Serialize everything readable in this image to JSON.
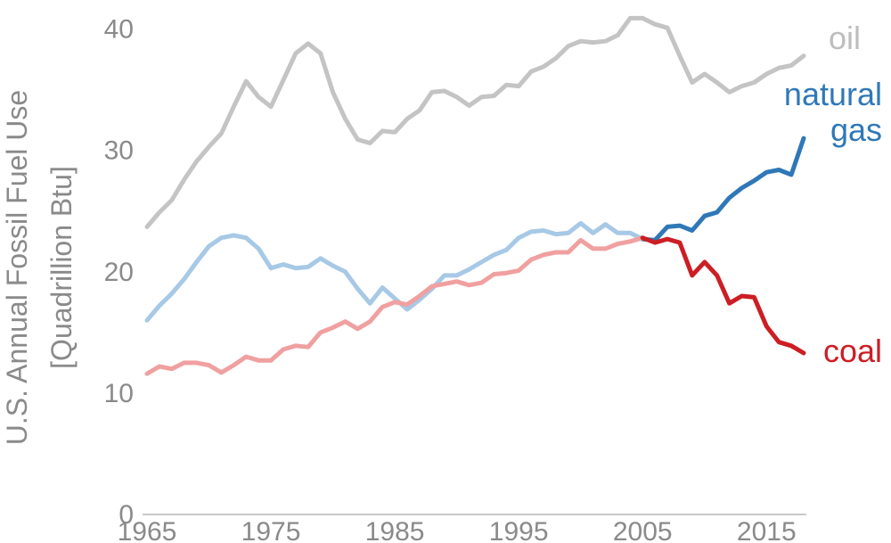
{
  "chart_data": {
    "type": "line",
    "ylabel_line1": "U.S. Annual Fossil Fuel Use",
    "ylabel_line2": "[Quadrillion Btu]",
    "xlim": [
      1965,
      2018
    ],
    "ylim": [
      0,
      41
    ],
    "xticks": [
      "1965",
      "1975",
      "1985",
      "1995",
      "2005",
      "2015"
    ],
    "yticks": [
      "0",
      "10",
      "20",
      "30",
      "40"
    ],
    "grid": false,
    "highlight_from_year": 2005,
    "x": [
      1965,
      1966,
      1967,
      1968,
      1969,
      1970,
      1971,
      1972,
      1973,
      1974,
      1975,
      1976,
      1977,
      1978,
      1979,
      1980,
      1981,
      1982,
      1983,
      1984,
      1985,
      1986,
      1987,
      1988,
      1989,
      1990,
      1991,
      1992,
      1993,
      1994,
      1995,
      1996,
      1997,
      1998,
      1999,
      2000,
      2001,
      2002,
      2003,
      2004,
      2005,
      2006,
      2007,
      2008,
      2009,
      2010,
      2011,
      2012,
      2013,
      2014,
      2015,
      2016,
      2017,
      2018
    ],
    "series": [
      {
        "name": "oil",
        "label_lines": [
          "oil"
        ],
        "color": "#c4c4c4",
        "highlight_color": "#c4c4c4",
        "label_color": "#bdbdbd",
        "values": [
          23.7,
          24.9,
          25.9,
          27.6,
          29.1,
          30.3,
          31.4,
          33.6,
          35.7,
          34.4,
          33.6,
          35.8,
          38.0,
          38.8,
          38.0,
          34.8,
          32.6,
          30.9,
          30.6,
          31.6,
          31.5,
          32.6,
          33.3,
          34.8,
          34.9,
          34.4,
          33.7,
          34.4,
          34.5,
          35.4,
          35.3,
          36.5,
          36.9,
          37.6,
          38.6,
          39.0,
          38.9,
          39.0,
          39.5,
          40.9,
          40.9,
          40.4,
          40.1,
          37.8,
          35.6,
          36.3,
          35.6,
          34.8,
          35.3,
          35.6,
          36.3,
          36.8,
          37.0,
          37.8
        ]
      },
      {
        "name": "natural gas",
        "label_lines": [
          "natural",
          "gas"
        ],
        "color": "#a7c9e6",
        "highlight_color": "#2f78b8",
        "label_color": "#2f78b8",
        "values": [
          16.0,
          17.2,
          18.2,
          19.4,
          20.8,
          22.1,
          22.8,
          23.0,
          22.8,
          21.9,
          20.3,
          20.6,
          20.3,
          20.4,
          21.1,
          20.5,
          20.0,
          18.6,
          17.4,
          18.7,
          17.8,
          16.9,
          17.7,
          18.6,
          19.7,
          19.7,
          20.2,
          20.8,
          21.4,
          21.8,
          22.8,
          23.3,
          23.4,
          23.1,
          23.2,
          24.0,
          23.2,
          23.9,
          23.2,
          23.2,
          22.7,
          22.6,
          23.7,
          23.8,
          23.4,
          24.6,
          24.9,
          26.1,
          26.9,
          27.5,
          28.2,
          28.4,
          28.0,
          31.0
        ]
      },
      {
        "name": "coal",
        "label_lines": [
          "coal"
        ],
        "color": "#f0a0a0",
        "highlight_color": "#cc1e24",
        "label_color": "#cc1e24",
        "values": [
          11.6,
          12.2,
          12.0,
          12.5,
          12.5,
          12.3,
          11.7,
          12.3,
          13.0,
          12.7,
          12.7,
          13.6,
          13.9,
          13.8,
          15.0,
          15.4,
          15.9,
          15.3,
          15.9,
          17.1,
          17.5,
          17.3,
          18.0,
          18.8,
          19.0,
          19.2,
          18.9,
          19.1,
          19.8,
          19.9,
          20.1,
          21.0,
          21.4,
          21.6,
          21.6,
          22.6,
          21.9,
          21.9,
          22.3,
          22.5,
          22.8,
          22.4,
          22.7,
          22.4,
          19.7,
          20.8,
          19.7,
          17.4,
          18.0,
          17.9,
          15.5,
          14.2,
          13.9,
          13.3
        ]
      }
    ]
  }
}
